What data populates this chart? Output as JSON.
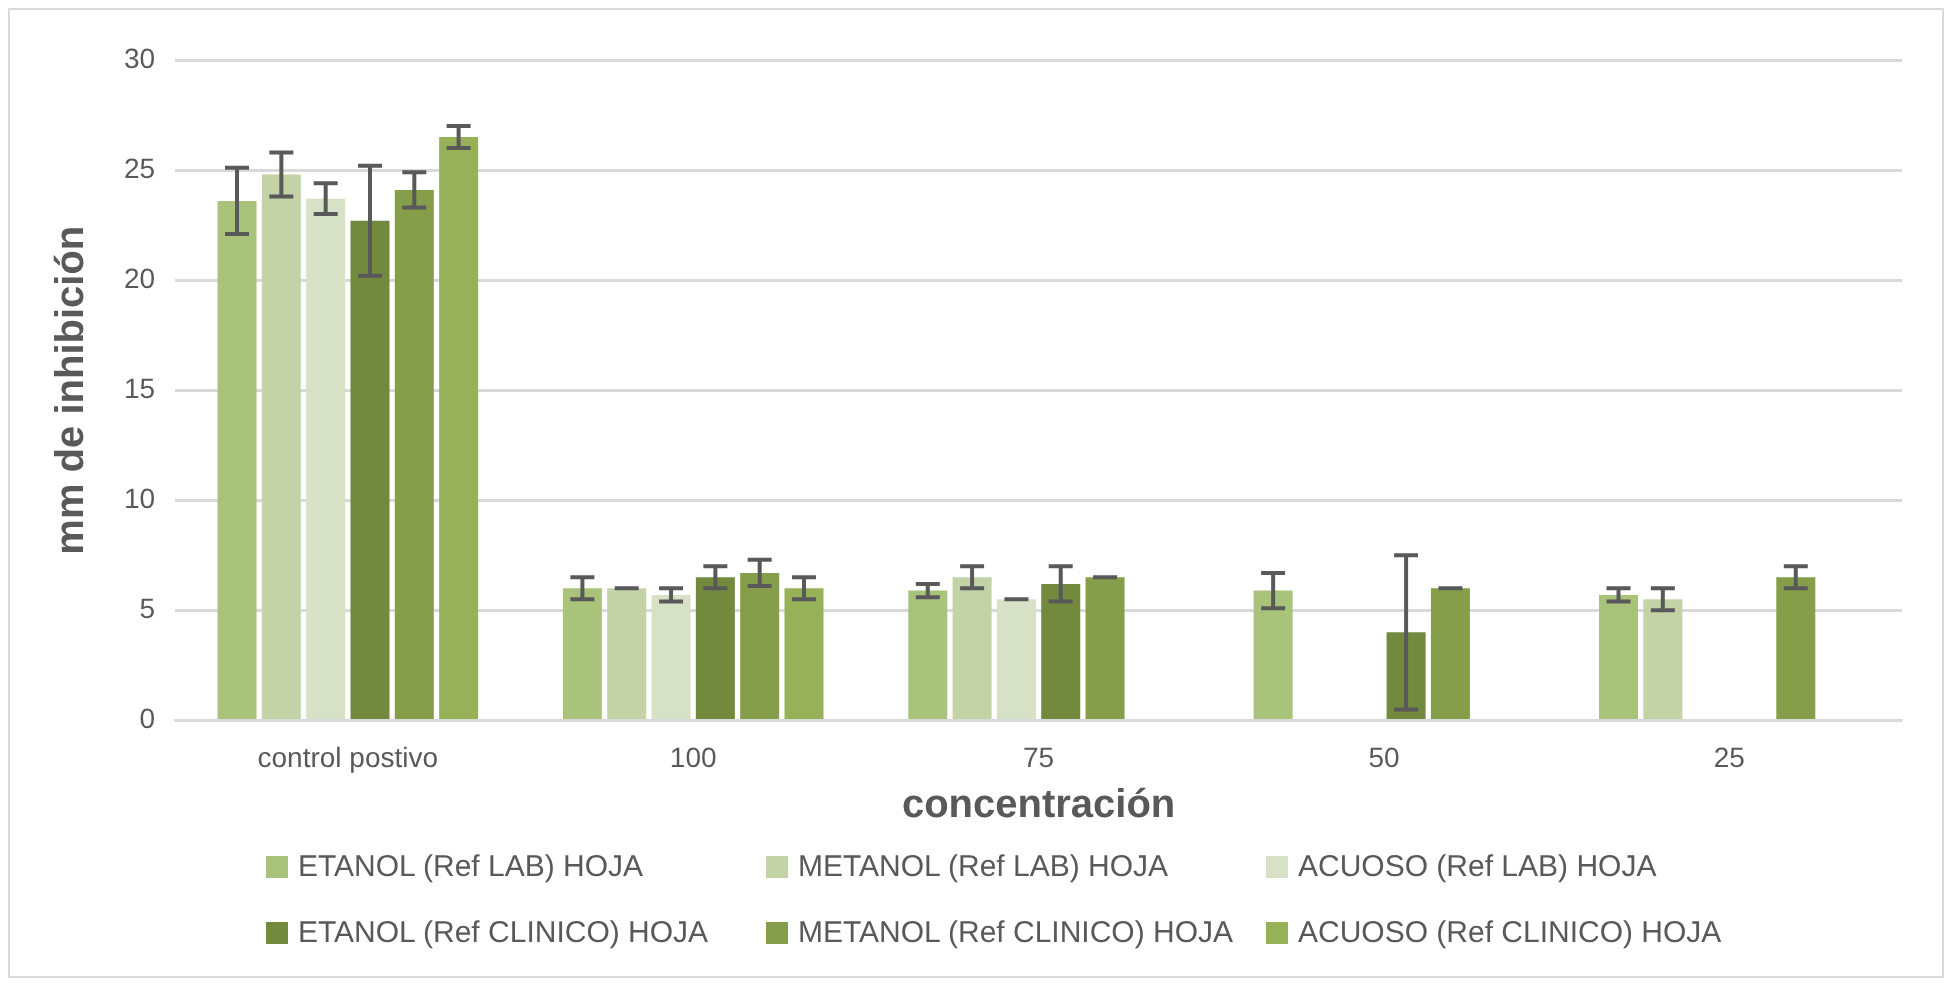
{
  "chart_data": {
    "type": "bar",
    "xlabel": "concentración",
    "ylabel": "mm de inhibición",
    "categories": [
      "control postivo",
      "100",
      "75",
      "50",
      "25"
    ],
    "ylim": [
      0,
      30
    ],
    "yticks": [
      0,
      5,
      10,
      15,
      20,
      25,
      30
    ],
    "grid": "y",
    "legend": "bottom",
    "series": [
      {
        "name": "ETANOL (Ref LAB) HOJA",
        "color": "#a9c47a",
        "values": [
          23.6,
          6.0,
          5.9,
          5.9,
          5.7
        ],
        "errors": [
          1.5,
          0.5,
          0.3,
          0.8,
          0.3
        ]
      },
      {
        "name": "METANOL (Ref LAB) HOJA",
        "color": "#c3d3a6",
        "values": [
          24.8,
          6.0,
          6.5,
          0,
          5.5
        ],
        "errors": [
          1.0,
          0,
          0.5,
          0,
          0.5
        ]
      },
      {
        "name": "ACUOSO (Ref LAB) HOJA",
        "color": "#d7e1c5",
        "values": [
          23.7,
          5.7,
          5.5,
          0,
          0
        ],
        "errors": [
          0.7,
          0.3,
          0,
          0,
          0
        ]
      },
      {
        "name": "ETANOL (Ref CLINICO) HOJA",
        "color": "#72893e",
        "values": [
          22.7,
          6.5,
          6.2,
          4.0,
          0
        ],
        "errors": [
          2.5,
          0.5,
          0.8,
          3.5,
          0
        ]
      },
      {
        "name": "METANOL (Ref CLINICO) HOJA",
        "color": "#869e4a",
        "values": [
          24.1,
          6.7,
          6.5,
          6.0,
          6.5
        ],
        "errors": [
          0.8,
          0.6,
          0,
          0,
          0.5
        ]
      },
      {
        "name": "ACUOSO (Ref CLINICO) HOJA",
        "color": "#97b158",
        "values": [
          26.5,
          6.0,
          0,
          0,
          0
        ],
        "errors": [
          0.5,
          0.5,
          0,
          0,
          0
        ]
      }
    ]
  }
}
